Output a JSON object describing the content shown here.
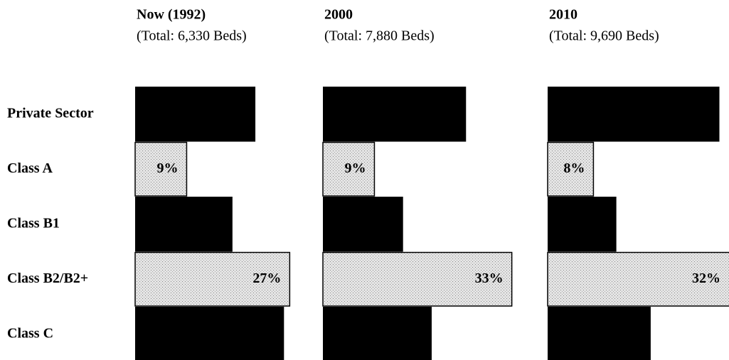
{
  "chart_data": {
    "type": "bar",
    "orientation": "horizontal",
    "categories": [
      "Private Sector",
      "Class A",
      "Class B1",
      "Class B2/B2+",
      "Class C"
    ],
    "colors": [
      "#000000",
      "stipple",
      "#000000",
      "stipple",
      "#000000"
    ],
    "series": [
      {
        "name": "Now (1992)",
        "subtitle": "(Total: 6,330 Beds)",
        "values": [
          21,
          9,
          17,
          27,
          26
        ],
        "value_labels": [
          null,
          "9%",
          null,
          "27%",
          null
        ]
      },
      {
        "name": "2000",
        "subtitle": "(Total: 7,880 Beds)",
        "values": [
          25,
          9,
          14,
          33,
          19
        ],
        "value_labels": [
          null,
          "9%",
          null,
          "33%",
          null
        ]
      },
      {
        "name": "2010",
        "subtitle": "(Total: 9,690 Beds)",
        "values": [
          30,
          8,
          12,
          32,
          18
        ],
        "value_labels": [
          null,
          "8%",
          null,
          "32%",
          null
        ]
      }
    ]
  }
}
